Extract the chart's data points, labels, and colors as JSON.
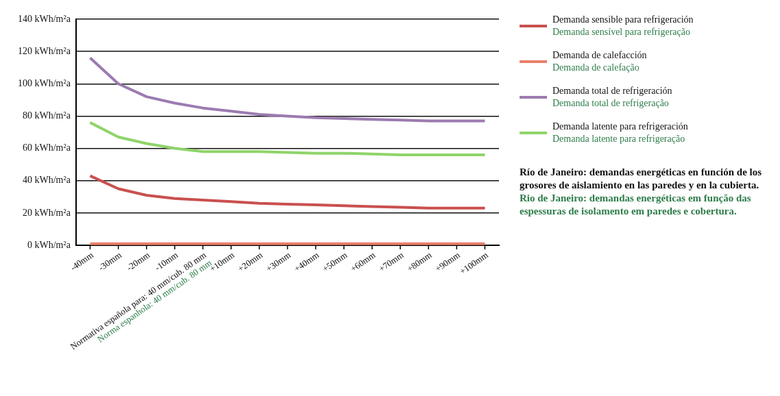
{
  "chart_data": {
    "type": "line",
    "categories": [
      "-40mm",
      "-30mm",
      "-20mm",
      "-10mm",
      "Normativa española para: 40 mm/cub. 80 mm\nNorma espanhola: 40 mm/cub. 80 mm",
      "+10mm",
      "+20mm",
      "+30mm",
      "+40mm",
      "+50mm",
      "+60mm",
      "+70mm",
      "+80mm",
      "+90mm",
      "+100mm"
    ],
    "series": [
      {
        "name": "Demanda sensible para refrigeración\nDemanda sensível para refrigeração",
        "color": "#c9504f",
        "values": [
          43,
          35,
          31,
          29,
          28,
          27,
          26,
          25.5,
          25,
          24.5,
          24,
          23.5,
          23,
          23,
          23
        ]
      },
      {
        "name": "Demanda de calefacción\nDemanda de calefação",
        "color": "#e8806a",
        "values": [
          1,
          1,
          1,
          1,
          1,
          1,
          1,
          1,
          1,
          1,
          1,
          1,
          1,
          1,
          1
        ]
      },
      {
        "name": "Demanda total de refrigeración\nDemanda total de refrigeração",
        "color": "#9b7bb0",
        "values": [
          116,
          100,
          92,
          88,
          85,
          83,
          81,
          80,
          79,
          78.5,
          78,
          77.5,
          77,
          77,
          77
        ]
      },
      {
        "name": "Demanda latente para refrigeración\nDemanda latente para refrigeração",
        "color": "#8fd46a",
        "values": [
          76,
          67,
          63,
          60,
          58,
          58,
          58,
          57.5,
          57,
          57,
          56.5,
          56,
          56,
          56,
          56
        ]
      }
    ],
    "ylim": [
      0,
      140
    ],
    "yticks": [
      {
        "value": 0,
        "label": "0 kWh/m²a"
      },
      {
        "value": 20,
        "label": "20 kWh/m²a"
      },
      {
        "value": 40,
        "label": "40 kWh/m²a"
      },
      {
        "value": 60,
        "label": "60 kWh/m²a"
      },
      {
        "value": 80,
        "label": "80 kWh/m²a"
      },
      {
        "value": 100,
        "label": "100 kWh/m²a"
      },
      {
        "value": 120,
        "label": "120 kWh/m²a"
      },
      {
        "value": 140,
        "label": "140 kWh/m²a"
      }
    ],
    "grid": "y",
    "legend": "right",
    "marker": "none",
    "line_style": "solid",
    "annotations": [
      "Río de Janeiro: demandas energéticas en función de los grosores de aislamiento en las paredes y en la cubierta.",
      "Rio de Janeiro: demandas energéticas em função das espessuras de isolamento em paredes e cobertura."
    ]
  }
}
